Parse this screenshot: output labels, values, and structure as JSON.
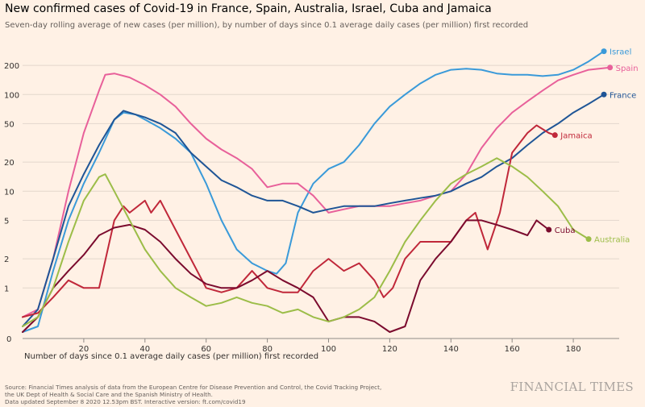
{
  "header": {
    "title": "New confirmed cases of Covid-19 in France, Spain, Australia, Israel, Cuba and Jamaica",
    "subtitle": "Seven-day rolling average of new cases (per million), by number of days since 0.1 average daily cases (per million) first recorded"
  },
  "footer": {
    "x_axis_label": "Number of days since 0.1 average daily cases (per million) first recorded",
    "source_lines": [
      "Source: Financial Times analysis of data from the European Centre for Disease Prevention and Control, the Covid Tracking Project,",
      "the UK Dept of Health & Social Care and the Spanish Ministry of Health.",
      "Data updated September 8 2020 12.53pm BST. Interactive version: ft.com/covid19"
    ],
    "logo": "FINANCIAL TIMES"
  },
  "colors": {
    "background": "#fff1e5",
    "Israel": "#3a9ad9",
    "Spain": "#e8609a",
    "France": "#1f5596",
    "Jamaica": "#c0283a",
    "Cuba": "#7b0b2e",
    "Australia": "#9cbd48"
  },
  "chart_data": {
    "type": "line",
    "y_scale": "log",
    "xlim": [
      0,
      195
    ],
    "ylim": [
      0.3,
      300
    ],
    "x_ticks": [
      20,
      40,
      60,
      80,
      100,
      120,
      140,
      160,
      180
    ],
    "y_ticks": [
      1,
      2,
      5,
      10,
      20,
      50,
      100,
      200
    ],
    "y_tick_labels": [
      "1",
      "2",
      "5",
      "10",
      "20",
      "50",
      "100",
      "200"
    ],
    "zero_label": "0",
    "grid": "horizontal",
    "legend": "direct labels at line ends",
    "series": [
      {
        "name": "Israel",
        "x": [
          0,
          5,
          10,
          15,
          20,
          25,
          30,
          33,
          37,
          40,
          45,
          50,
          55,
          60,
          65,
          70,
          75,
          80,
          83,
          86,
          90,
          95,
          100,
          105,
          110,
          115,
          120,
          125,
          130,
          135,
          140,
          145,
          150,
          155,
          160,
          165,
          170,
          175,
          180,
          185,
          190
        ],
        "y": [
          0.35,
          0.4,
          1.5,
          5,
          12,
          25,
          55,
          65,
          62,
          55,
          45,
          35,
          25,
          12,
          5,
          2.5,
          1.8,
          1.5,
          1.4,
          1.8,
          6,
          12,
          17,
          20,
          30,
          50,
          75,
          100,
          130,
          160,
          180,
          185,
          180,
          165,
          160,
          160,
          155,
          160,
          180,
          220,
          280
        ]
      },
      {
        "name": "Spain",
        "x": [
          0,
          5,
          10,
          15,
          20,
          25,
          27,
          30,
          35,
          40,
          45,
          50,
          55,
          60,
          65,
          70,
          75,
          80,
          85,
          90,
          95,
          100,
          105,
          110,
          115,
          120,
          125,
          130,
          135,
          140,
          145,
          150,
          155,
          160,
          165,
          170,
          175,
          180,
          185,
          192
        ],
        "y": [
          0.5,
          0.6,
          2,
          10,
          40,
          110,
          160,
          165,
          150,
          125,
          100,
          75,
          50,
          35,
          27,
          22,
          17,
          11,
          12,
          12,
          9,
          6,
          6.5,
          7,
          7,
          7,
          7.5,
          8,
          9,
          10,
          15,
          28,
          45,
          65,
          85,
          110,
          140,
          160,
          180,
          190
        ]
      },
      {
        "name": "France",
        "x": [
          0,
          5,
          10,
          15,
          20,
          25,
          30,
          33,
          37,
          40,
          45,
          50,
          55,
          60,
          65,
          70,
          75,
          80,
          85,
          90,
          95,
          100,
          105,
          110,
          115,
          120,
          125,
          130,
          135,
          140,
          145,
          150,
          155,
          160,
          165,
          170,
          175,
          180,
          185,
          190
        ],
        "y": [
          0.4,
          0.6,
          2,
          7,
          15,
          30,
          55,
          68,
          62,
          58,
          50,
          40,
          25,
          18,
          13,
          11,
          9,
          8,
          8,
          7,
          6,
          6.5,
          7,
          7,
          7,
          7.5,
          8,
          8.5,
          9,
          10,
          12,
          14,
          18,
          22,
          30,
          40,
          50,
          65,
          80,
          100
        ]
      },
      {
        "name": "Jamaica",
        "x": [
          0,
          5,
          10,
          15,
          20,
          25,
          30,
          33,
          35,
          40,
          42,
          45,
          50,
          55,
          60,
          65,
          70,
          75,
          80,
          85,
          90,
          95,
          100,
          105,
          110,
          115,
          118,
          121,
          125,
          130,
          135,
          140,
          145,
          148,
          152,
          156,
          160,
          165,
          168,
          172,
          174
        ],
        "y": [
          0.5,
          0.55,
          0.8,
          1.2,
          1,
          1,
          5,
          7,
          6,
          8,
          6,
          8,
          4,
          2,
          1,
          0.9,
          1,
          1.5,
          1,
          0.9,
          0.9,
          1.5,
          2,
          1.5,
          1.8,
          1.2,
          0.8,
          1,
          2,
          3,
          3,
          3,
          5,
          6,
          2.5,
          6,
          25,
          40,
          48,
          40,
          38
        ]
      },
      {
        "name": "Cuba",
        "x": [
          0,
          5,
          10,
          15,
          20,
          25,
          30,
          35,
          40,
          45,
          50,
          55,
          60,
          65,
          70,
          75,
          80,
          85,
          90,
          95,
          100,
          105,
          110,
          115,
          120,
          125,
          130,
          135,
          140,
          145,
          150,
          155,
          160,
          165,
          168,
          172
        ],
        "y": [
          0.35,
          0.5,
          1,
          1.5,
          2.2,
          3.5,
          4.2,
          4.5,
          4,
          3,
          2,
          1.4,
          1.1,
          1,
          1,
          1.2,
          1.5,
          1.2,
          1,
          0.8,
          0.45,
          0.5,
          0.5,
          0.45,
          0.35,
          0.4,
          1.2,
          2,
          3,
          5,
          5,
          4.5,
          4,
          3.5,
          5,
          4
        ]
      },
      {
        "name": "Australia",
        "x": [
          0,
          5,
          10,
          15,
          20,
          25,
          27,
          30,
          35,
          40,
          45,
          50,
          55,
          60,
          65,
          70,
          75,
          80,
          85,
          90,
          95,
          100,
          105,
          110,
          115,
          120,
          125,
          130,
          135,
          140,
          145,
          150,
          155,
          160,
          165,
          170,
          175,
          180,
          185
        ],
        "y": [
          0.4,
          0.5,
          1,
          3,
          8,
          14,
          15,
          10,
          5,
          2.5,
          1.5,
          1,
          0.8,
          0.65,
          0.7,
          0.8,
          0.7,
          0.65,
          0.55,
          0.6,
          0.5,
          0.45,
          0.5,
          0.6,
          0.8,
          1.5,
          3,
          5,
          8,
          12,
          15,
          18,
          22,
          18,
          14,
          10,
          7,
          4,
          3.2
        ]
      }
    ]
  }
}
